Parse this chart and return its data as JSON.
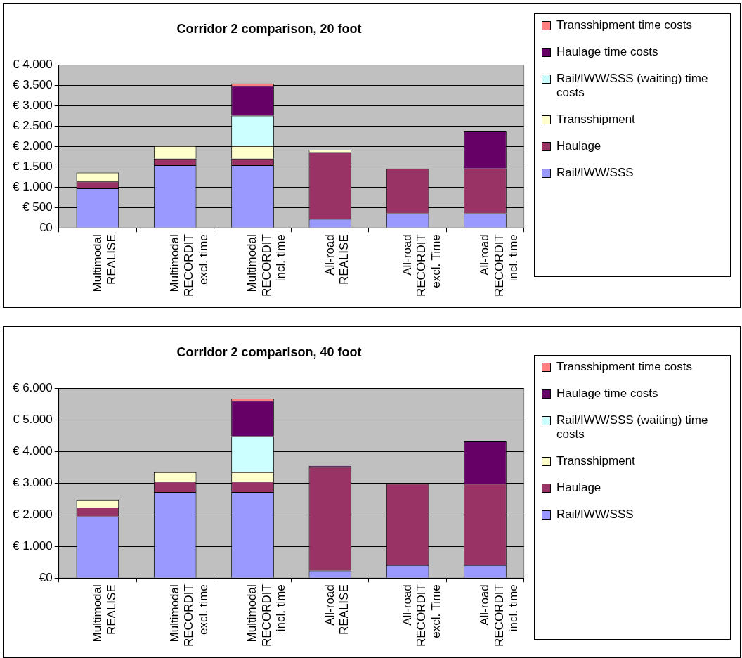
{
  "chart_data": [
    {
      "type": "bar",
      "title": "Corridor 2 comparison, 20 foot",
      "stacked": true,
      "grid": "y",
      "legend": "right",
      "categories": [
        "Multimodal\nREALISE",
        "Multimodal\nRECORDIT\nexcl. time",
        "Multimodal\nRECORDIT\nincl. time",
        "All-road\nREALISE",
        "All-road\nRECORDIT\nexcl. Time",
        "All-road\nRECORDIT\nincl. time"
      ],
      "ylim": [
        0,
        4000
      ],
      "yticks": [
        {
          "value": 0,
          "label": "€0"
        },
        {
          "value": 500,
          "label": "€ 500"
        },
        {
          "value": 1000,
          "label": "€ 1.000"
        },
        {
          "value": 1500,
          "label": "€ 1.500"
        },
        {
          "value": 2000,
          "label": "€ 2.000"
        },
        {
          "value": 2500,
          "label": "€ 2.500"
        },
        {
          "value": 3000,
          "label": "€ 3.000"
        },
        {
          "value": 3500,
          "label": "€ 3.500"
        },
        {
          "value": 4000,
          "label": "€ 4.000"
        }
      ],
      "series": [
        {
          "name": "Rail/IWW/SSS",
          "color": "#9999ff",
          "values": [
            970,
            1540,
            1540,
            220,
            360,
            360
          ]
        },
        {
          "name": "Haulage",
          "color": "#993366",
          "values": [
            170,
            160,
            160,
            1640,
            1100,
            1100
          ]
        },
        {
          "name": "Transshipment",
          "color": "#ffffcc",
          "values": [
            220,
            310,
            310,
            60,
            null,
            null
          ]
        },
        {
          "name": "Rail/IWW/SSS (waiting) time costs",
          "color": "#ccffff",
          "values": [
            null,
            null,
            750,
            null,
            null,
            null
          ]
        },
        {
          "name": "Haulage time costs",
          "color": "#660066",
          "values": [
            null,
            null,
            730,
            null,
            null,
            910
          ]
        },
        {
          "name": "Transshipment time costs",
          "color": "#ff8080",
          "values": [
            null,
            null,
            60,
            null,
            null,
            null
          ]
        }
      ]
    },
    {
      "type": "bar",
      "title": "Corridor 2 comparison, 40 foot",
      "stacked": true,
      "grid": "y",
      "legend": "right",
      "categories": [
        "Multimodal\nREALISE",
        "Multimodal\nRECORDIT\nexcl. time",
        "Multimodal\nRECORDIT\nincl. time",
        "All-road\nREALISE",
        "All-road\nRECORDIT\nexcl. Time",
        "All-road\nRECORDIT\nincl. time"
      ],
      "ylim": [
        0,
        6000
      ],
      "yticks": [
        {
          "value": 0,
          "label": "€0"
        },
        {
          "value": 1000,
          "label": "€ 1.000"
        },
        {
          "value": 2000,
          "label": "€ 2.000"
        },
        {
          "value": 3000,
          "label": "€ 3.000"
        },
        {
          "value": 4000,
          "label": "€ 4.000"
        },
        {
          "value": 5000,
          "label": "€ 5.000"
        },
        {
          "value": 6000,
          "label": "€ 6.000"
        }
      ],
      "series": [
        {
          "name": "Rail/IWW/SSS",
          "color": "#9999ff",
          "values": [
            1950,
            2720,
            2720,
            240,
            410,
            410
          ]
        },
        {
          "name": "Haulage",
          "color": "#993366",
          "values": [
            280,
            330,
            330,
            3270,
            2570,
            2570
          ]
        },
        {
          "name": "Transshipment",
          "color": "#ffffcc",
          "values": [
            250,
            300,
            300,
            null,
            null,
            null
          ]
        },
        {
          "name": "Rail/IWW/SSS (waiting) time costs",
          "color": "#ccffff",
          "values": [
            null,
            null,
            1140,
            null,
            null,
            null
          ]
        },
        {
          "name": "Haulage time costs",
          "color": "#660066",
          "values": [
            null,
            null,
            1120,
            40,
            null,
            1340
          ]
        },
        {
          "name": "Transshipment time costs",
          "color": "#ff8080",
          "values": [
            null,
            null,
            70,
            null,
            null,
            null
          ]
        }
      ]
    }
  ]
}
